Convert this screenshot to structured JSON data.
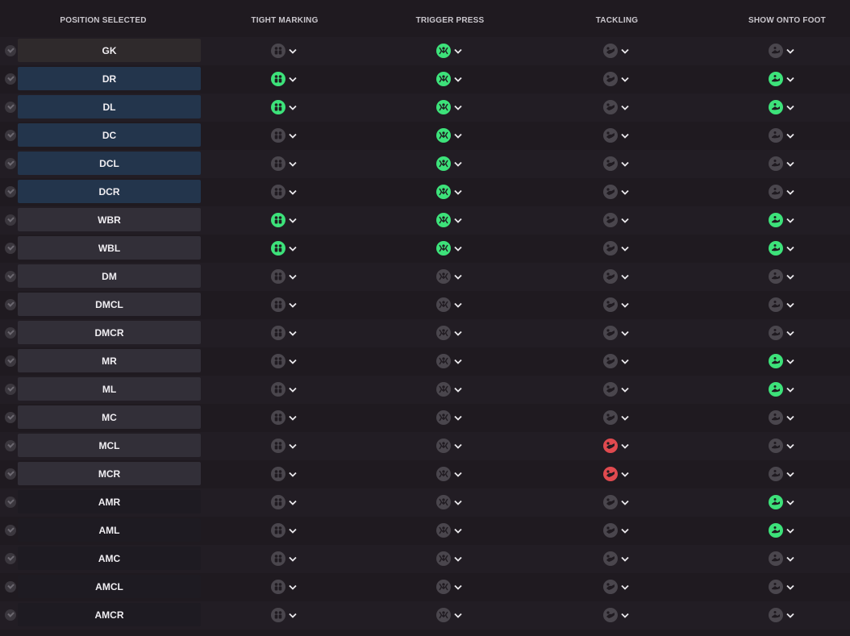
{
  "columns": {
    "position": "POSITION SELECTED",
    "tight_marking": "TIGHT MARKING",
    "trigger_press": "TRIGGER PRESS",
    "tackling": "TACKLING",
    "show_onto_foot": "SHOW ONTO FOOT"
  },
  "colors": {
    "background": "#1f1a20",
    "active_green": "#3de27a",
    "active_red": "#e04a4f",
    "inactive_grey": "#4a464d"
  },
  "rows": [
    {
      "position": "GK",
      "group": "gk",
      "tight_marking": "off",
      "trigger_press": "green",
      "tackling": "off",
      "show_onto_foot": "off"
    },
    {
      "position": "DR",
      "group": "def",
      "tight_marking": "green",
      "trigger_press": "green",
      "tackling": "off",
      "show_onto_foot": "green"
    },
    {
      "position": "DL",
      "group": "def",
      "tight_marking": "green",
      "trigger_press": "green",
      "tackling": "off",
      "show_onto_foot": "green"
    },
    {
      "position": "DC",
      "group": "def",
      "tight_marking": "off",
      "trigger_press": "green",
      "tackling": "off",
      "show_onto_foot": "off"
    },
    {
      "position": "DCL",
      "group": "def",
      "tight_marking": "off",
      "trigger_press": "green",
      "tackling": "off",
      "show_onto_foot": "off"
    },
    {
      "position": "DCR",
      "group": "def",
      "tight_marking": "off",
      "trigger_press": "green",
      "tackling": "off",
      "show_onto_foot": "off"
    },
    {
      "position": "WBR",
      "group": "mid",
      "tight_marking": "green",
      "trigger_press": "green",
      "tackling": "off",
      "show_onto_foot": "green"
    },
    {
      "position": "WBL",
      "group": "mid",
      "tight_marking": "green",
      "trigger_press": "green",
      "tackling": "off",
      "show_onto_foot": "green"
    },
    {
      "position": "DM",
      "group": "mid",
      "tight_marking": "off",
      "trigger_press": "off",
      "tackling": "off",
      "show_onto_foot": "off"
    },
    {
      "position": "DMCL",
      "group": "mid",
      "tight_marking": "off",
      "trigger_press": "off",
      "tackling": "off",
      "show_onto_foot": "off"
    },
    {
      "position": "DMCR",
      "group": "mid",
      "tight_marking": "off",
      "trigger_press": "off",
      "tackling": "off",
      "show_onto_foot": "off"
    },
    {
      "position": "MR",
      "group": "mid",
      "tight_marking": "off",
      "trigger_press": "off",
      "tackling": "off",
      "show_onto_foot": "green"
    },
    {
      "position": "ML",
      "group": "mid",
      "tight_marking": "off",
      "trigger_press": "off",
      "tackling": "off",
      "show_onto_foot": "green"
    },
    {
      "position": "MC",
      "group": "mid",
      "tight_marking": "off",
      "trigger_press": "off",
      "tackling": "off",
      "show_onto_foot": "off"
    },
    {
      "position": "MCL",
      "group": "mid",
      "tight_marking": "off",
      "trigger_press": "off",
      "tackling": "red",
      "show_onto_foot": "off"
    },
    {
      "position": "MCR",
      "group": "mid",
      "tight_marking": "off",
      "trigger_press": "off",
      "tackling": "red",
      "show_onto_foot": "off"
    },
    {
      "position": "AMR",
      "group": "att",
      "tight_marking": "off",
      "trigger_press": "off",
      "tackling": "off",
      "show_onto_foot": "green"
    },
    {
      "position": "AML",
      "group": "att",
      "tight_marking": "off",
      "trigger_press": "off",
      "tackling": "off",
      "show_onto_foot": "green"
    },
    {
      "position": "AMC",
      "group": "att",
      "tight_marking": "off",
      "trigger_press": "off",
      "tackling": "off",
      "show_onto_foot": "off"
    },
    {
      "position": "AMCL",
      "group": "att",
      "tight_marking": "off",
      "trigger_press": "off",
      "tackling": "off",
      "show_onto_foot": "off"
    },
    {
      "position": "AMCR",
      "group": "att",
      "tight_marking": "off",
      "trigger_press": "off",
      "tackling": "off",
      "show_onto_foot": "off"
    }
  ]
}
